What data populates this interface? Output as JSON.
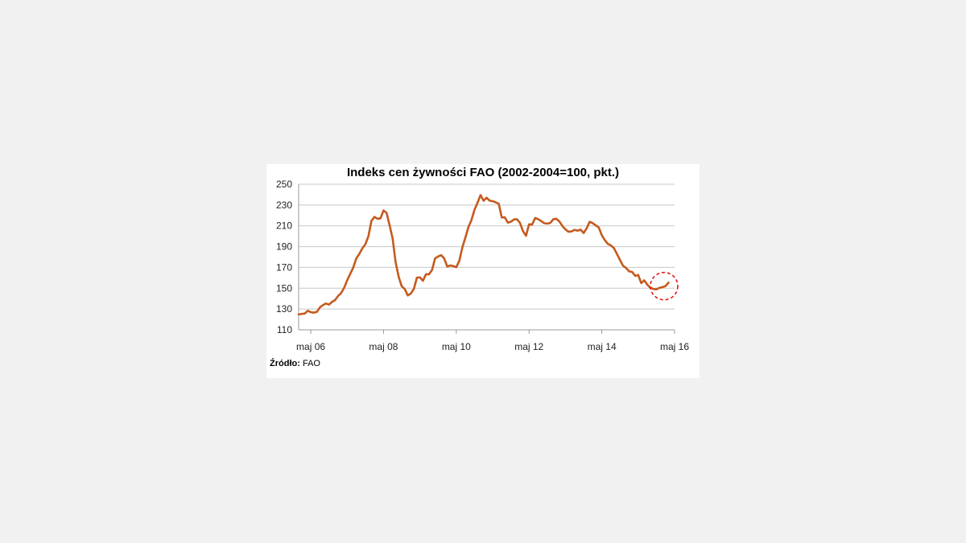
{
  "chart_data": {
    "type": "line",
    "title": "Indeks cen żywności FAO (2002-2004=100, pkt.)",
    "xlabel": "",
    "ylabel": "",
    "ylim": [
      110,
      250
    ],
    "yticks": [
      110,
      130,
      150,
      170,
      190,
      210,
      230,
      250
    ],
    "xticks": [
      "maj 06",
      "maj 08",
      "maj 10",
      "maj 12",
      "maj 14",
      "maj 16"
    ],
    "grid": "horizontal",
    "legend": "none",
    "line_color": "#c55a1e",
    "highlight_color": "#e01b1b",
    "highlight_label": "latest values (dashed circle, May 2016)",
    "series": [
      {
        "x_start": "2006-01",
        "frequency": "monthly",
        "values": [
          124.8,
          125.3,
          125.6,
          128.3,
          127,
          126.5,
          127.2,
          131.5,
          133.8,
          135.3,
          134.2,
          136.8,
          138.6,
          142.5,
          145.3,
          150.3,
          157.6,
          163.7,
          169.8,
          178.6,
          182.9,
          188.3,
          192.3,
          199.8,
          214.7,
          218.6,
          216.8,
          217.2,
          224.8,
          222.4,
          210.5,
          197.8,
          174.6,
          160.8,
          151.9,
          149.2,
          143.1,
          144.9,
          149.3,
          160.1,
          160.4,
          157.2,
          163.4,
          163.4,
          167.6,
          178.7,
          180.5,
          181.8,
          178.6,
          170.9,
          171.9,
          171.3,
          170.2,
          176.4,
          189.3,
          198.7,
          208.8,
          215.6,
          225.4,
          232.2,
          239.6,
          234.1,
          237,
          234.2,
          233.7,
          232.6,
          231.2,
          218,
          218.2,
          213.1,
          213.9,
          216.1,
          216.3,
          212.8,
          204.9,
          200.5,
          211.5,
          211.2,
          217.5,
          216.4,
          214.6,
          212.5,
          212.1,
          212.8,
          216.3,
          216.8,
          214.2,
          209.8,
          206.6,
          204.3,
          204.6,
          206.1,
          205.3,
          206.3,
          203.1,
          207.6,
          213.9,
          212.5,
          210.4,
          208.4,
          200.9,
          196.2,
          192.6,
          191.2,
          188.5,
          182.9,
          177.1,
          171.6,
          169.5,
          166.2,
          165.7,
          161.9,
          162.7,
          154.9,
          157.6,
          153.4,
          150.6,
          149.3,
          148.9,
          150.4,
          151,
          152.1,
          155.3
        ]
      }
    ]
  },
  "source": {
    "label": "Źródło:",
    "value": "FAO"
  }
}
